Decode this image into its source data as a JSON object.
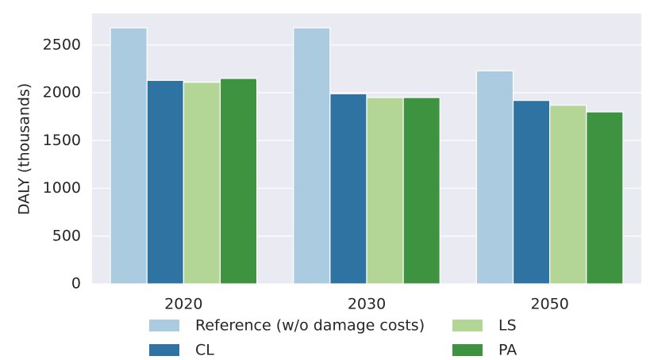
{
  "chart_data": {
    "type": "bar",
    "categories": [
      "2020",
      "2030",
      "2050"
    ],
    "series": [
      {
        "name": "Reference (w/o damage costs)",
        "values": [
          2680,
          2680,
          2230
        ],
        "color": "#abcbe0"
      },
      {
        "name": "CL",
        "values": [
          2130,
          1990,
          1920
        ],
        "color": "#2f73a3"
      },
      {
        "name": "LS",
        "values": [
          2110,
          1950,
          1870
        ],
        "color": "#b3d595"
      },
      {
        "name": "PA",
        "values": [
          2150,
          1950,
          1800
        ],
        "color": "#3e9340"
      }
    ],
    "title": "",
    "xlabel": "",
    "ylabel": "DALY (thousands)",
    "ylim": [
      0,
      2830
    ],
    "yticks": [
      0,
      500,
      1000,
      1500,
      2000,
      2500
    ],
    "grid": true,
    "legend_position": "bottom"
  },
  "colors": {
    "plot_background": "#eaeaf2",
    "grid": "#ffffff"
  }
}
